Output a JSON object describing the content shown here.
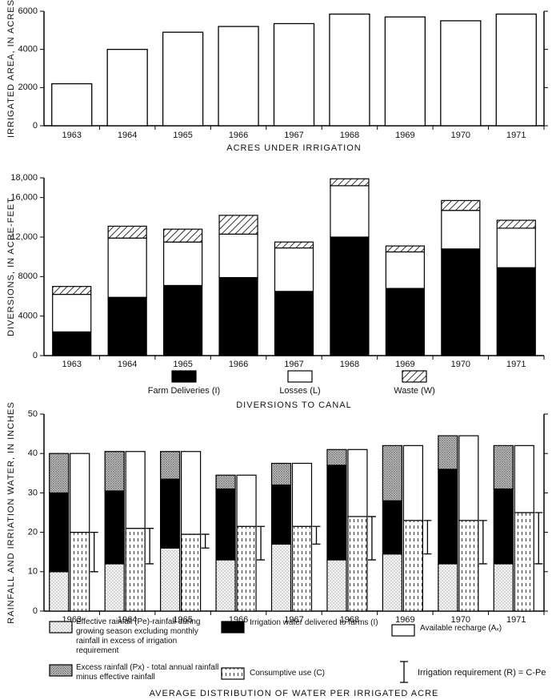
{
  "chart_data": [
    {
      "type": "bar",
      "y_label": "IRRIGATED AREA, IN ACRES",
      "x_label": "ACRES UNDER IRRIGATION",
      "categories": [
        "1963",
        "1964",
        "1965",
        "1966",
        "1967",
        "1968",
        "1969",
        "1970",
        "1971"
      ],
      "values": [
        2200,
        4000,
        4900,
        5200,
        5350,
        5850,
        5700,
        5500,
        5850
      ],
      "color": "#ffffff",
      "ylim": [
        0,
        6000
      ],
      "yticks": [
        0,
        2000,
        4000,
        6000
      ]
    },
    {
      "type": "stacked_bar",
      "y_label": "DIVERSIONS, IN ACRE-FEET",
      "x_label": "DIVERSIONS TO CANAL",
      "categories": [
        "1963",
        "1964",
        "1965",
        "1966",
        "1967",
        "1968",
        "1969",
        "1970",
        "1971"
      ],
      "series": [
        {
          "name": "Farm Deliveries (I)",
          "color": "#000000",
          "values": [
            2400,
            5900,
            7100,
            7900,
            6500,
            12000,
            6800,
            10800,
            8900
          ]
        },
        {
          "name": "Losses (L)",
          "color": "#ffffff",
          "values": [
            3800,
            6000,
            4400,
            4400,
            4400,
            5200,
            3700,
            3900,
            4000
          ]
        },
        {
          "name": "Waste (W)",
          "color": "#ffffff",
          "pattern": "hatch",
          "values": [
            800,
            1200,
            1300,
            1900,
            600,
            700,
            600,
            1000,
            800
          ]
        }
      ],
      "ylim": [
        0,
        18000
      ],
      "yticks": [
        0,
        4000,
        8000,
        {
          "value": 12000,
          "label": "12,000"
        },
        {
          "value": 16000,
          "label": "16,000"
        },
        {
          "value": 18000,
          "label": "18,000"
        }
      ]
    },
    {
      "type": "stacked_bar",
      "y_label": "RAINFALL AND IRRIATION WATER, IN INCHES",
      "x_label": "AVERAGE DISTRIBUTION OF WATER PER IRRIGATED ACRE",
      "categories": [
        "1963",
        "1964",
        "1965",
        "1966",
        "1967",
        "1968",
        "1969",
        "1970",
        "1971"
      ],
      "series": [
        {
          "name": "Effective rainfall (Pe)-rainfall during growing season excluding monthly rainfall in excess of irrigation requirement",
          "color": "#ffffff",
          "pattern": "dots",
          "stack": "left",
          "values": [
            10,
            12,
            16,
            13,
            17,
            13,
            14.5,
            12,
            12
          ]
        },
        {
          "name": "Irrigation water delivered to farms (I)",
          "color": "#000000",
          "stack": "left",
          "values": [
            20,
            18.5,
            17.5,
            18,
            15,
            24,
            13.5,
            24,
            19
          ]
        },
        {
          "name": "Excess rainfall (Px) - total annual rainfall minus effective rainfall",
          "color": "#ffffff",
          "pattern": "stipple",
          "stack": "left",
          "values": [
            10,
            10,
            7,
            3.5,
            5.5,
            4,
            14,
            8.5,
            11
          ]
        },
        {
          "name": "Consumptive use (C)",
          "color": "#ffffff",
          "pattern": "dashes",
          "stack": "right",
          "values": [
            20,
            21,
            19.5,
            21.5,
            21.5,
            24,
            23,
            23,
            25
          ]
        },
        {
          "name": "Available recharge (Aₓ)",
          "color": "#ffffff",
          "stack": "right",
          "values": [
            20,
            19.5,
            21,
            13,
            16,
            17,
            19,
            21.5,
            17
          ]
        }
      ],
      "error_bar_label": "Irrigation requirement (R) = C-Pe",
      "ylim": [
        0,
        50
      ],
      "yticks": [
        0,
        10,
        20,
        30,
        40,
        50
      ]
    }
  ]
}
